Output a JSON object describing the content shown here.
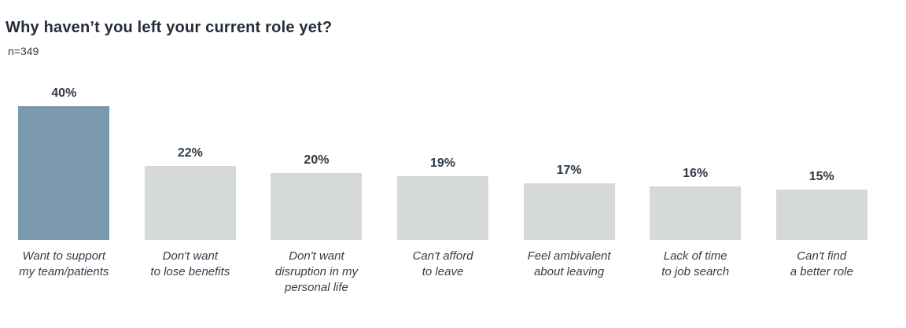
{
  "page": {
    "title": "Why haven’t you left your current role yet?",
    "sample_size": "n=349"
  },
  "chart_data": {
    "type": "bar",
    "title": "Why haven’t you left your current role yet?",
    "subtitle": "n=349",
    "categories": [
      "Want to support\nmy team/patients",
      "Don't want\nto lose benefits",
      "Don't want\ndisruption in my\npersonal life",
      "Can't afford\nto leave",
      "Feel ambivalent\nabout leaving",
      "Lack of time\nto job search",
      "Can't find\na better role"
    ],
    "values": [
      40,
      22,
      20,
      19,
      17,
      16,
      15
    ],
    "value_labels": [
      "40%",
      "22%",
      "20%",
      "19%",
      "17%",
      "16%",
      "15%"
    ],
    "unit": "%",
    "ylim": [
      0,
      40
    ],
    "grid": false,
    "legend": "none",
    "axes_shown": false,
    "highlight_index": 0,
    "colors": {
      "highlight_bar": "#7b99ac",
      "default_bar": "#d6d9da",
      "value_label": "#2e3a46",
      "category_label": "#333f4b",
      "title": "#242e38",
      "background": "#ffffff"
    }
  }
}
